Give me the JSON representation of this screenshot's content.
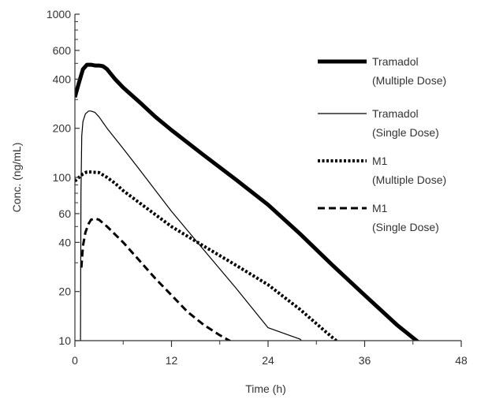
{
  "chart_data": {
    "type": "line",
    "xlabel": "Time (h)",
    "ylabel": "Conc. (ng/mL)",
    "xlim": [
      0,
      48
    ],
    "ylim": [
      10,
      1000
    ],
    "yscale": "log",
    "xticks": [
      "0",
      "12",
      "24",
      "36",
      "48"
    ],
    "yticks": [
      "10",
      "20",
      "40",
      "60",
      "100",
      "200",
      "400",
      "600",
      "1000"
    ],
    "grid": false,
    "legend_position": "right",
    "series": [
      {
        "name": "Tramadol",
        "name2": "(Multiple Dose)",
        "style": "thick-solid",
        "x": [
          0,
          0.5,
          1,
          1.5,
          2,
          2.5,
          3,
          3.5,
          4,
          5,
          6,
          8,
          10,
          12,
          16,
          20,
          24,
          28,
          32,
          36,
          40,
          43
        ],
        "y": [
          310,
          380,
          460,
          490,
          490,
          485,
          485,
          480,
          460,
          400,
          355,
          290,
          235,
          195,
          137,
          97,
          68,
          45,
          29,
          19,
          12.5,
          9.5
        ]
      },
      {
        "name": "Tramadol",
        "name2": "(Single Dose)",
        "style": "thin-solid",
        "x": [
          0.7,
          0.75,
          0.85,
          1,
          1.3,
          1.7,
          2,
          2.5,
          3,
          4,
          6,
          8,
          12,
          16,
          20,
          24,
          28,
          28.5
        ],
        "y": [
          10,
          80,
          180,
          220,
          245,
          255,
          255,
          250,
          235,
          200,
          150,
          112,
          62,
          36,
          21,
          12,
          10.2,
          9.5
        ]
      },
      {
        "name": "M1",
        "name2": "(Multiple Dose)",
        "style": "dotted",
        "x": [
          0,
          0.5,
          1,
          1.5,
          2,
          3,
          4,
          5,
          6,
          8,
          12,
          16,
          20,
          24,
          28,
          31,
          33
        ],
        "y": [
          95,
          100,
          105,
          108,
          108,
          107,
          100,
          92,
          83,
          70,
          50,
          38,
          29,
          22,
          15.5,
          11.5,
          9.5
        ]
      },
      {
        "name": "M1",
        "name2": "(Single Dose)",
        "style": "dashed",
        "x": [
          0.8,
          1,
          1.3,
          1.7,
          2,
          2.5,
          3,
          4,
          6,
          8,
          10,
          12,
          14,
          16,
          18,
          20,
          20.5
        ],
        "y": [
          28,
          38,
          46,
          52,
          55,
          56,
          55,
          50,
          40,
          31,
          24,
          19,
          15,
          12.5,
          10.8,
          9.5,
          9.5
        ]
      }
    ]
  }
}
